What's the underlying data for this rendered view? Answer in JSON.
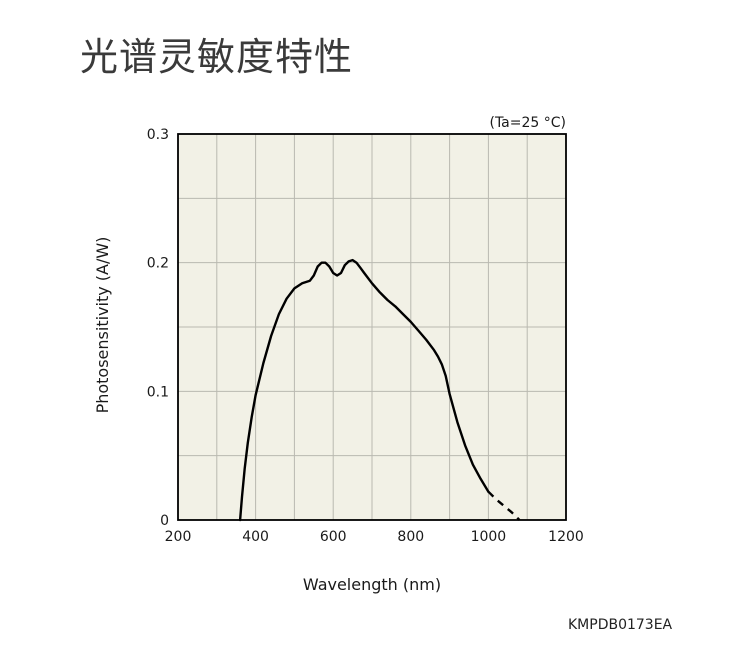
{
  "page": {
    "title": "光谱灵敏度特性",
    "doc_code": "KMPDB0173EA"
  },
  "chart_data": {
    "type": "line",
    "title": "",
    "condition": "(Ta=25 °C)",
    "xlabel": "Wavelength (nm)",
    "ylabel": "Photosensitivity (A/W)",
    "xlim": [
      200,
      1200
    ],
    "ylim": [
      0,
      0.3
    ],
    "xticks": [
      200,
      400,
      600,
      800,
      1000,
      1200
    ],
    "xtick_labels": [
      "200",
      "400",
      "600",
      "800",
      "1000",
      "1200"
    ],
    "yticks": [
      0,
      0.1,
      0.2,
      0.3
    ],
    "ytick_labels": [
      "0",
      "0.1",
      "0.2",
      "0.3"
    ],
    "x_grid_step": 100,
    "y_grid_step": 0.05,
    "grid": true,
    "plot_background": "#f2f1e6",
    "grid_color": "#b9b9b0",
    "line_color": "#000000",
    "series": [
      {
        "style": "solid",
        "x": [
          360,
          365,
          372,
          380,
          390,
          400,
          420,
          440,
          460,
          480,
          500,
          520,
          540,
          550,
          560,
          570,
          580,
          590,
          600,
          610,
          620,
          630,
          640,
          650,
          660,
          670,
          680,
          700,
          720,
          740,
          760,
          780,
          800,
          820,
          840,
          860,
          870,
          880,
          890,
          900,
          920,
          940,
          960,
          980,
          1000
        ],
        "y": [
          0,
          0.018,
          0.04,
          0.06,
          0.08,
          0.097,
          0.122,
          0.143,
          0.16,
          0.172,
          0.18,
          0.184,
          0.186,
          0.19,
          0.197,
          0.2,
          0.2,
          0.197,
          0.192,
          0.19,
          0.192,
          0.198,
          0.201,
          0.202,
          0.2,
          0.196,
          0.192,
          0.184,
          0.177,
          0.171,
          0.166,
          0.16,
          0.154,
          0.147,
          0.14,
          0.132,
          0.127,
          0.121,
          0.112,
          0.098,
          0.076,
          0.058,
          0.043,
          0.032,
          0.022
        ]
      },
      {
        "style": "dashed",
        "x": [
          1000,
          1020,
          1040,
          1060,
          1070,
          1080
        ],
        "y": [
          0.022,
          0.016,
          0.011,
          0.006,
          0.003,
          0
        ]
      }
    ]
  }
}
